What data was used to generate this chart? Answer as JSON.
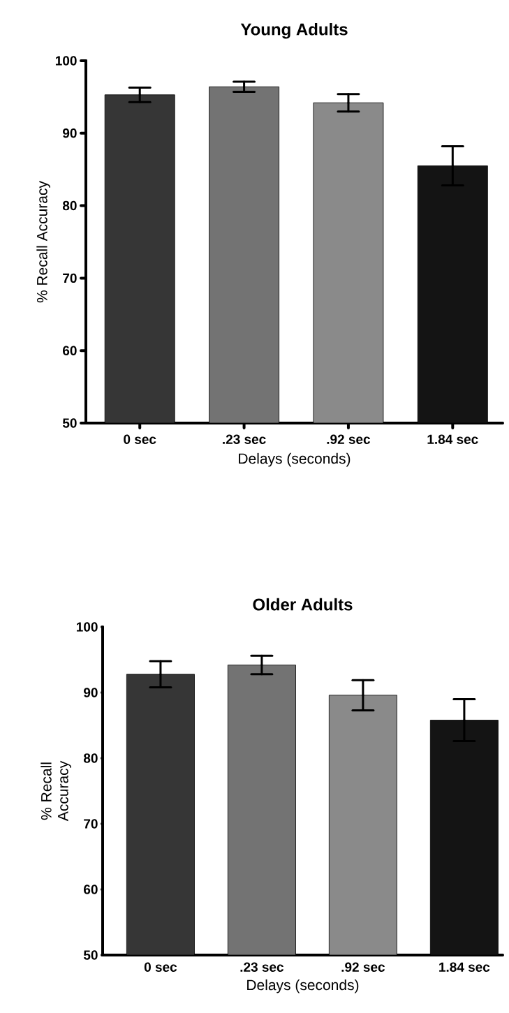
{
  "chart_data": [
    {
      "type": "bar",
      "title": "Young Adults",
      "xlabel": "Delays (seconds)",
      "ylabel": "% Recall Accuracy",
      "categories": [
        "0 sec",
        ".23 sec",
        ".92 sec",
        "1.84 sec"
      ],
      "values": [
        95.3,
        96.4,
        94.2,
        85.5
      ],
      "errors": [
        1.0,
        0.7,
        1.2,
        2.7
      ],
      "colors": [
        "#363636",
        "#737373",
        "#8a8a8a",
        "#141414"
      ],
      "ylim": [
        50,
        100
      ],
      "yticks": [
        50,
        60,
        70,
        80,
        90,
        100
      ]
    },
    {
      "type": "bar",
      "title": "Older Adults",
      "xlabel": "Delays (seconds)",
      "ylabel": "% Recall Accuracy",
      "categories": [
        "0 sec",
        ".23 sec",
        ".92 sec",
        "1.84 sec"
      ],
      "values": [
        92.8,
        94.2,
        89.6,
        85.8
      ],
      "errors": [
        2.0,
        1.4,
        2.3,
        3.2
      ],
      "colors": [
        "#363636",
        "#737373",
        "#8a8a8a",
        "#141414"
      ],
      "ylim": [
        50,
        100
      ],
      "yticks": [
        50,
        60,
        70,
        80,
        90,
        100
      ]
    }
  ]
}
